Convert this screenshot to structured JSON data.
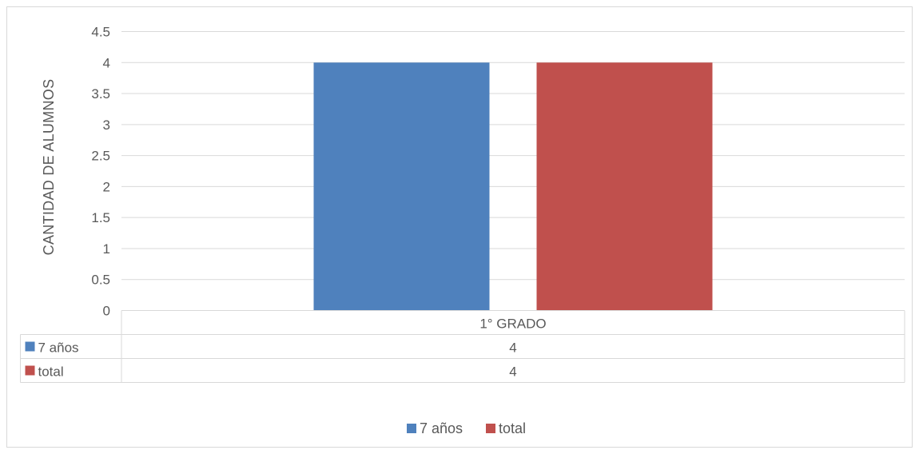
{
  "chart_data": {
    "type": "bar",
    "title": "",
    "xlabel": "",
    "ylabel": "CANTIDAD DE ALUMNOS",
    "categories": [
      "1° GRADO"
    ],
    "series": [
      {
        "name": "7 años",
        "values": [
          4
        ],
        "color": "#4f81bd"
      },
      {
        "name": "total",
        "values": [
          4
        ],
        "color": "#c0504d"
      }
    ],
    "ylim": [
      0,
      4.5
    ],
    "yticks": [
      "0",
      "0.5",
      "1",
      "1.5",
      "2",
      "2.5",
      "3",
      "3.5",
      "4",
      "4.5"
    ],
    "grid": true,
    "data_table": true,
    "legend": "bottom"
  }
}
